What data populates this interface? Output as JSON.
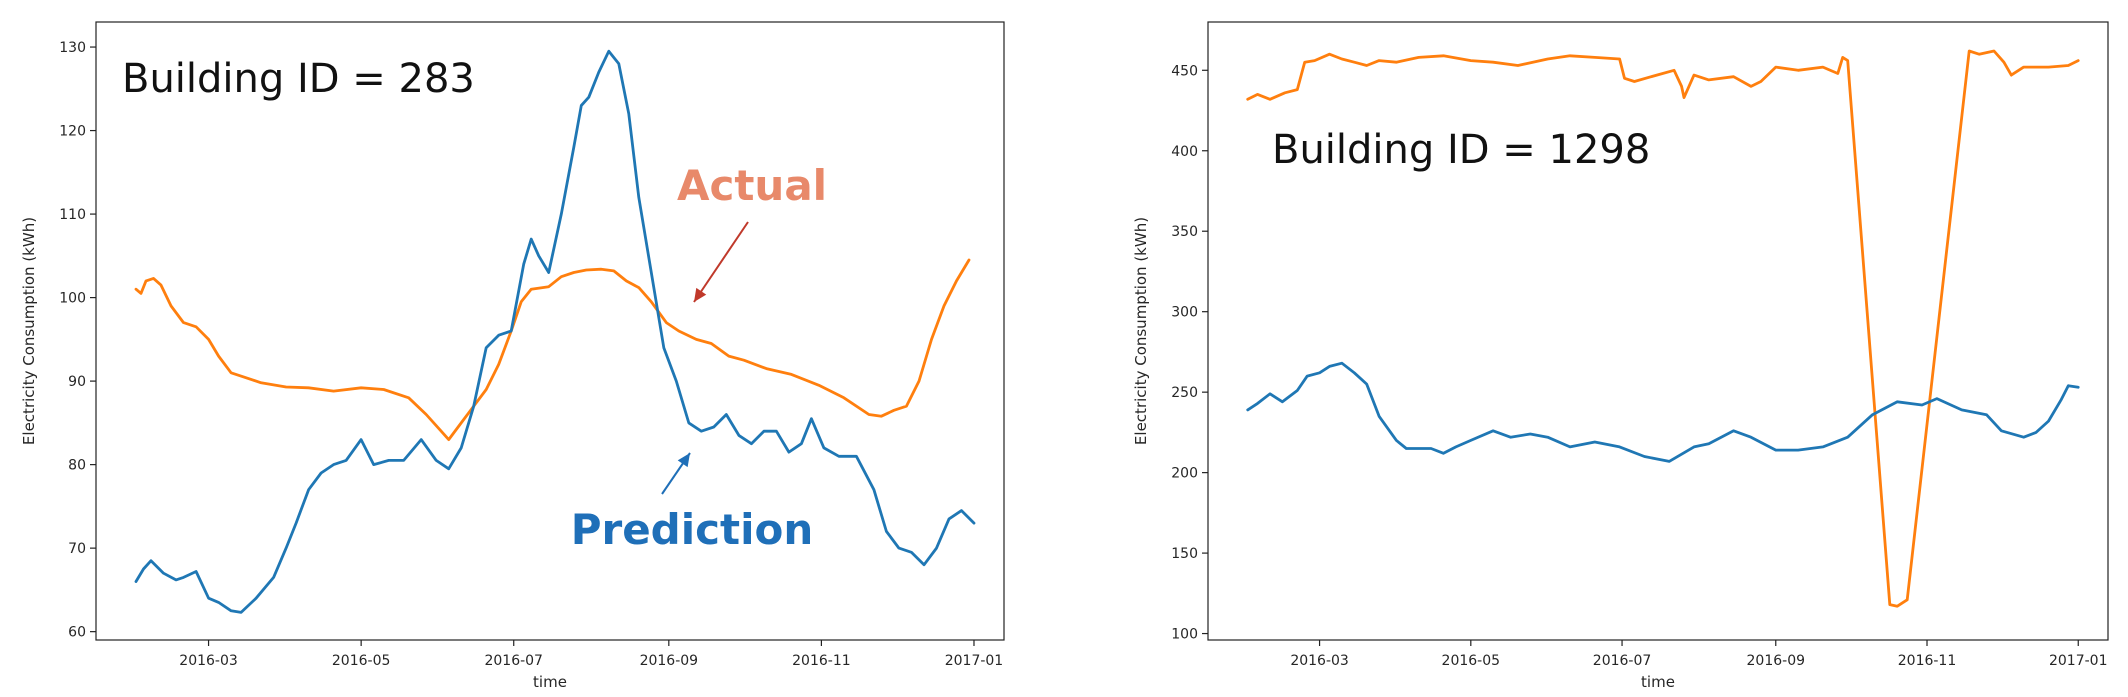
{
  "chart_data": [
    {
      "type": "line",
      "xlabel": "time",
      "ylabel": "Electricity Consumption (kWh)",
      "xlim": [
        "2016-01-16",
        "2017-01-13"
      ],
      "ylim": [
        59,
        133
      ],
      "x_ticks": [
        "2016-03",
        "2016-05",
        "2016-07",
        "2016-09",
        "2016-11",
        "2017-01"
      ],
      "y_ticks": [
        60,
        70,
        80,
        90,
        100,
        110,
        120,
        130
      ],
      "grid": false,
      "annotations": [
        {
          "text": "Building ID = 283"
        },
        {
          "text": "Actual",
          "color": "#E8896A"
        },
        {
          "text": "Prediction",
          "color": "#1F6FB8"
        }
      ],
      "series": [
        {
          "name": "Actual",
          "color": "#ff7f0e",
          "points": [
            [
              "2016-02-01",
              101
            ],
            [
              "2016-02-03",
              100.5
            ],
            [
              "2016-02-05",
              102
            ],
            [
              "2016-02-08",
              102.3
            ],
            [
              "2016-02-11",
              101.5
            ],
            [
              "2016-02-15",
              99
            ],
            [
              "2016-02-20",
              97
            ],
            [
              "2016-02-25",
              96.5
            ],
            [
              "2016-03-01",
              95
            ],
            [
              "2016-03-05",
              93
            ],
            [
              "2016-03-10",
              91
            ],
            [
              "2016-03-15",
              90.5
            ],
            [
              "2016-03-22",
              89.8
            ],
            [
              "2016-04-01",
              89.3
            ],
            [
              "2016-04-10",
              89.2
            ],
            [
              "2016-04-20",
              88.8
            ],
            [
              "2016-05-01",
              89.2
            ],
            [
              "2016-05-10",
              89
            ],
            [
              "2016-05-20",
              88
            ],
            [
              "2016-05-27",
              86
            ],
            [
              "2016-06-02",
              84
            ],
            [
              "2016-06-05",
              83
            ],
            [
              "2016-06-10",
              85
            ],
            [
              "2016-06-15",
              87
            ],
            [
              "2016-06-20",
              89
            ],
            [
              "2016-06-25",
              92
            ],
            [
              "2016-06-30",
              96
            ],
            [
              "2016-07-04",
              99.5
            ],
            [
              "2016-07-08",
              101
            ],
            [
              "2016-07-15",
              101.3
            ],
            [
              "2016-07-20",
              102.5
            ],
            [
              "2016-07-25",
              103
            ],
            [
              "2016-07-30",
              103.3
            ],
            [
              "2016-08-05",
              103.4
            ],
            [
              "2016-08-10",
              103.2
            ],
            [
              "2016-08-15",
              102
            ],
            [
              "2016-08-20",
              101.2
            ],
            [
              "2016-08-25",
              99.5
            ],
            [
              "2016-08-31",
              97
            ],
            [
              "2016-09-05",
              96
            ],
            [
              "2016-09-12",
              95
            ],
            [
              "2016-09-18",
              94.5
            ],
            [
              "2016-09-25",
              93
            ],
            [
              "2016-10-01",
              92.5
            ],
            [
              "2016-10-10",
              91.5
            ],
            [
              "2016-10-20",
              90.8
            ],
            [
              "2016-10-31",
              89.5
            ],
            [
              "2016-11-10",
              88
            ],
            [
              "2016-11-20",
              86
            ],
            [
              "2016-11-25",
              85.8
            ],
            [
              "2016-11-30",
              86.5
            ],
            [
              "2016-12-05",
              87
            ],
            [
              "2016-12-10",
              90
            ],
            [
              "2016-12-15",
              95
            ],
            [
              "2016-12-20",
              99
            ],
            [
              "2016-12-25",
              102
            ],
            [
              "2016-12-30",
              104.5
            ]
          ]
        },
        {
          "name": "Prediction",
          "color": "#1f77b4",
          "points": [
            [
              "2016-02-01",
              66
            ],
            [
              "2016-02-04",
              67.5
            ],
            [
              "2016-02-07",
              68.5
            ],
            [
              "2016-02-12",
              67
            ],
            [
              "2016-02-17",
              66.2
            ],
            [
              "2016-02-20",
              66.5
            ],
            [
              "2016-02-25",
              67.2
            ],
            [
              "2016-03-01",
              64
            ],
            [
              "2016-03-05",
              63.5
            ],
            [
              "2016-03-10",
              62.5
            ],
            [
              "2016-03-14",
              62.3
            ],
            [
              "2016-03-20",
              64
            ],
            [
              "2016-03-27",
              66.5
            ],
            [
              "2016-04-01",
              70
            ],
            [
              "2016-04-05",
              73
            ],
            [
              "2016-04-10",
              77
            ],
            [
              "2016-04-15",
              79
            ],
            [
              "2016-04-20",
              80
            ],
            [
              "2016-04-25",
              80.5
            ],
            [
              "2016-05-01",
              83
            ],
            [
              "2016-05-06",
              80
            ],
            [
              "2016-05-12",
              80.5
            ],
            [
              "2016-05-18",
              80.5
            ],
            [
              "2016-05-25",
              83
            ],
            [
              "2016-05-31",
              80.5
            ],
            [
              "2016-06-05",
              79.5
            ],
            [
              "2016-06-10",
              82
            ],
            [
              "2016-06-15",
              87
            ],
            [
              "2016-06-20",
              94
            ],
            [
              "2016-06-25",
              95.5
            ],
            [
              "2016-06-30",
              96
            ],
            [
              "2016-07-05",
              104
            ],
            [
              "2016-07-08",
              107
            ],
            [
              "2016-07-11",
              105
            ],
            [
              "2016-07-15",
              103
            ],
            [
              "2016-07-20",
              110
            ],
            [
              "2016-07-25",
              118
            ],
            [
              "2016-07-28",
              123
            ],
            [
              "2016-07-31",
              124
            ],
            [
              "2016-08-04",
              127
            ],
            [
              "2016-08-08",
              129.5
            ],
            [
              "2016-08-12",
              128
            ],
            [
              "2016-08-16",
              122
            ],
            [
              "2016-08-20",
              112
            ],
            [
              "2016-08-25",
              103
            ],
            [
              "2016-08-30",
              94
            ],
            [
              "2016-09-04",
              90
            ],
            [
              "2016-09-09",
              85
            ],
            [
              "2016-09-14",
              84
            ],
            [
              "2016-09-19",
              84.5
            ],
            [
              "2016-09-24",
              86
            ],
            [
              "2016-09-29",
              83.5
            ],
            [
              "2016-10-04",
              82.5
            ],
            [
              "2016-10-09",
              84
            ],
            [
              "2016-10-14",
              84
            ],
            [
              "2016-10-19",
              81.5
            ],
            [
              "2016-10-24",
              82.5
            ],
            [
              "2016-10-28",
              85.5
            ],
            [
              "2016-11-02",
              82
            ],
            [
              "2016-11-08",
              81
            ],
            [
              "2016-11-15",
              81
            ],
            [
              "2016-11-22",
              77
            ],
            [
              "2016-11-27",
              72
            ],
            [
              "2016-12-02",
              70
            ],
            [
              "2016-12-07",
              69.5
            ],
            [
              "2016-12-12",
              68
            ],
            [
              "2016-12-17",
              70
            ],
            [
              "2016-12-22",
              73.5
            ],
            [
              "2016-12-27",
              74.5
            ],
            [
              "2017-01-01",
              73
            ]
          ]
        }
      ]
    },
    {
      "type": "line",
      "xlabel": "time",
      "ylabel": "Electricity Consumption (kWh)",
      "xlim": [
        "2016-01-16",
        "2017-01-13"
      ],
      "ylim": [
        96,
        480
      ],
      "x_ticks": [
        "2016-03",
        "2016-05",
        "2016-07",
        "2016-09",
        "2016-11",
        "2017-01"
      ],
      "y_ticks": [
        100,
        150,
        200,
        250,
        300,
        350,
        400,
        450
      ],
      "grid": false,
      "annotations": [
        {
          "text": "Building ID = 1298"
        }
      ],
      "series": [
        {
          "name": "",
          "color": "#ff7f0e",
          "points": [
            [
              "2016-02-01",
              432
            ],
            [
              "2016-02-05",
              435
            ],
            [
              "2016-02-10",
              432
            ],
            [
              "2016-02-16",
              436
            ],
            [
              "2016-02-21",
              438
            ],
            [
              "2016-02-24",
              455
            ],
            [
              "2016-02-28",
              456
            ],
            [
              "2016-03-05",
              460
            ],
            [
              "2016-03-10",
              457
            ],
            [
              "2016-03-15",
              455
            ],
            [
              "2016-03-20",
              453
            ],
            [
              "2016-03-25",
              456
            ],
            [
              "2016-04-01",
              455
            ],
            [
              "2016-04-10",
              458
            ],
            [
              "2016-04-20",
              459
            ],
            [
              "2016-05-01",
              456
            ],
            [
              "2016-05-10",
              455
            ],
            [
              "2016-05-20",
              453
            ],
            [
              "2016-06-01",
              457
            ],
            [
              "2016-06-10",
              459
            ],
            [
              "2016-06-20",
              458
            ],
            [
              "2016-06-30",
              457
            ],
            [
              "2016-07-02",
              445
            ],
            [
              "2016-07-06",
              443
            ],
            [
              "2016-07-15",
              447
            ],
            [
              "2016-07-22",
              450
            ],
            [
              "2016-07-25",
              440
            ],
            [
              "2016-07-26",
              433
            ],
            [
              "2016-07-30",
              447
            ],
            [
              "2016-08-05",
              444
            ],
            [
              "2016-08-15",
              446
            ],
            [
              "2016-08-22",
              440
            ],
            [
              "2016-08-26",
              443
            ],
            [
              "2016-09-01",
              452
            ],
            [
              "2016-09-10",
              450
            ],
            [
              "2016-09-20",
              452
            ],
            [
              "2016-09-26",
              448
            ],
            [
              "2016-09-28",
              458
            ],
            [
              "2016-09-30",
              456
            ],
            [
              "2016-10-17",
              118
            ],
            [
              "2016-10-20",
              117
            ],
            [
              "2016-10-24",
              121
            ],
            [
              "2016-11-18",
              462
            ],
            [
              "2016-11-22",
              460
            ],
            [
              "2016-11-28",
              462
            ],
            [
              "2016-12-02",
              455
            ],
            [
              "2016-12-05",
              447
            ],
            [
              "2016-12-10",
              452
            ],
            [
              "2016-12-20",
              452
            ],
            [
              "2016-12-28",
              453
            ],
            [
              "2017-01-01",
              456
            ]
          ]
        },
        {
          "name": "",
          "color": "#1f77b4",
          "points": [
            [
              "2016-02-01",
              239
            ],
            [
              "2016-02-05",
              243
            ],
            [
              "2016-02-10",
              249
            ],
            [
              "2016-02-15",
              244
            ],
            [
              "2016-02-21",
              251
            ],
            [
              "2016-02-25",
              260
            ],
            [
              "2016-03-01",
              262
            ],
            [
              "2016-03-05",
              266
            ],
            [
              "2016-03-10",
              268
            ],
            [
              "2016-03-15",
              262
            ],
            [
              "2016-03-20",
              255
            ],
            [
              "2016-03-25",
              235
            ],
            [
              "2016-04-01",
              220
            ],
            [
              "2016-04-05",
              215
            ],
            [
              "2016-04-10",
              215
            ],
            [
              "2016-04-15",
              215
            ],
            [
              "2016-04-20",
              212
            ],
            [
              "2016-04-25",
              216
            ],
            [
              "2016-05-01",
              220
            ],
            [
              "2016-05-10",
              226
            ],
            [
              "2016-05-17",
              222
            ],
            [
              "2016-05-25",
              224
            ],
            [
              "2016-06-01",
              222
            ],
            [
              "2016-06-10",
              216
            ],
            [
              "2016-06-20",
              219
            ],
            [
              "2016-06-30",
              216
            ],
            [
              "2016-07-10",
              210
            ],
            [
              "2016-07-20",
              207
            ],
            [
              "2016-07-30",
              216
            ],
            [
              "2016-08-05",
              218
            ],
            [
              "2016-08-15",
              226
            ],
            [
              "2016-08-22",
              222
            ],
            [
              "2016-09-01",
              214
            ],
            [
              "2016-09-10",
              214
            ],
            [
              "2016-09-20",
              216
            ],
            [
              "2016-09-30",
              222
            ],
            [
              "2016-10-10",
              236
            ],
            [
              "2016-10-20",
              244
            ],
            [
              "2016-10-30",
              242
            ],
            [
              "2016-11-05",
              246
            ],
            [
              "2016-11-15",
              239
            ],
            [
              "2016-11-25",
              236
            ],
            [
              "2016-12-01",
              226
            ],
            [
              "2016-12-10",
              222
            ],
            [
              "2016-12-15",
              225
            ],
            [
              "2016-12-20",
              232
            ],
            [
              "2016-12-25",
              245
            ],
            [
              "2016-12-28",
              254
            ],
            [
              "2017-01-01",
              253
            ]
          ]
        }
      ]
    }
  ]
}
